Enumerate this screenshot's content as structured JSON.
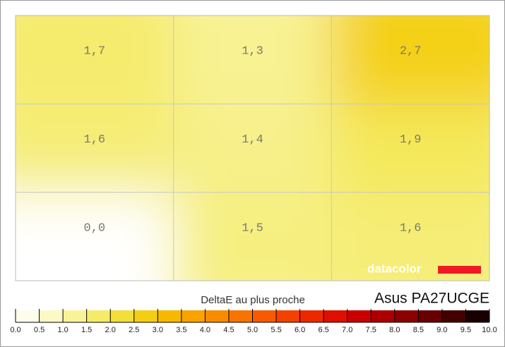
{
  "chart_data": {
    "type": "heatmap",
    "title": "DeltaE au plus proche",
    "subtitle": "Asus PA27UCGE",
    "logo": "datacolor",
    "values": [
      [
        1.7,
        1.3,
        2.7
      ],
      [
        1.6,
        1.4,
        1.9
      ],
      [
        0.0,
        1.5,
        1.6
      ]
    ],
    "value_labels": [
      [
        "1,7",
        "1,3",
        "2,7"
      ],
      [
        "1,6",
        "1,4",
        "1,9"
      ],
      [
        "0,0",
        "1,5",
        "1,6"
      ]
    ],
    "clim": [
      0,
      10
    ],
    "colorbar_ticks": [
      {
        "value": 0,
        "label": "0.0"
      },
      0.5,
      {
        "value": 1,
        "label": "1.0"
      },
      1.5,
      {
        "value": 2,
        "label": "2.0"
      },
      2.5,
      {
        "value": 3,
        "label": "3.0"
      },
      3.5,
      {
        "value": 4,
        "label": "4.0"
      },
      4.5,
      {
        "value": 5,
        "label": "5.0"
      },
      5.5,
      {
        "value": 6,
        "label": "6.0"
      },
      6.5,
      {
        "value": 7,
        "label": "7.0"
      },
      7.5,
      {
        "value": 8,
        "label": "8.0"
      },
      8.5,
      {
        "value": 9,
        "label": "9.0"
      },
      9.5,
      {
        "value": 10,
        "label": "10.0"
      }
    ],
    "colorscale": [
      "#ffffff",
      "#fdfbd8",
      "#faf6b0",
      "#f6ef80",
      "#f3e650",
      "#f3d822",
      "#f5c400",
      "#f8ae00",
      "#f99600",
      "#f97f00",
      "#f86600",
      "#f64d00",
      "#f23300",
      "#e81c00",
      "#d80000",
      "#bb0000",
      "#9b0000",
      "#7a0000",
      "#560000",
      "#300000",
      "#000000"
    ],
    "grid": true
  }
}
